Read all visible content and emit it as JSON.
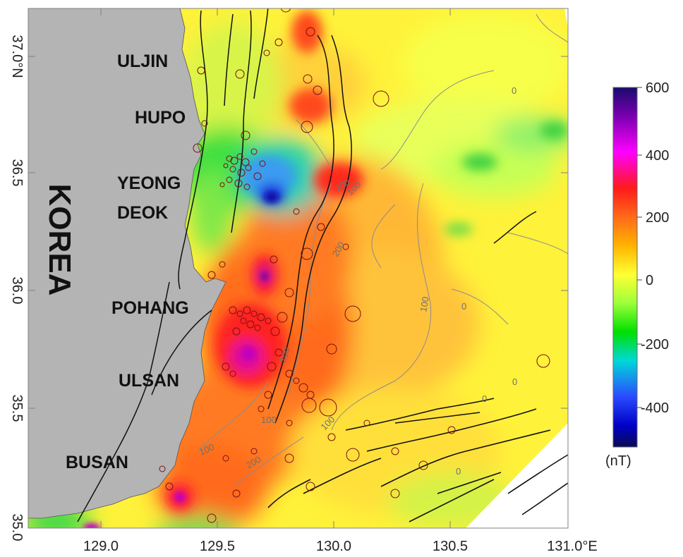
{
  "map": {
    "country_label": "KOREA",
    "place_labels": [
      "ULJIN",
      "HUPO",
      "YEONG",
      "DEOK",
      "POHANG",
      "ULSAN",
      "BUSAN"
    ],
    "lat_ticks": [
      "37.0°N",
      "36.5",
      "36.0",
      "35.5",
      "35.0"
    ],
    "lon_ticks": [
      "129.0",
      "129.5",
      "130.0",
      "130.5",
      "131.0°E"
    ],
    "contour_labels": [
      "0",
      "0",
      "0",
      "0",
      "0",
      "100",
      "100",
      "100",
      "100",
      "100",
      "200",
      "200",
      "200",
      "200"
    ],
    "colors": {
      "land": "#b4b4b4",
      "fault_line": "#111111",
      "earthquake_circle": "#7a1010"
    }
  },
  "colorbar": {
    "unit": "(nT)",
    "ticks": [
      "600",
      "400",
      "200",
      "0",
      "-200",
      "-400"
    ],
    "colors": [
      "#1a0a6e",
      "#7a00b0",
      "#ff00ff",
      "#ff1a1a",
      "#ff6a1a",
      "#ffb300",
      "#ffff33",
      "#9cff3a",
      "#00e000",
      "#00d8d8",
      "#2a4bff",
      "#0000c8",
      "#0a0a55"
    ]
  }
}
